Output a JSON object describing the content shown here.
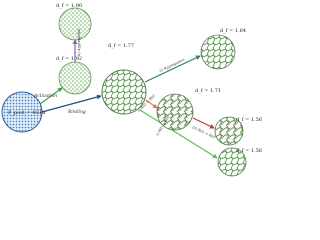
{
  "nodes": [
    {
      "id": "pre",
      "label": "P_post = 4GPa"
    },
    {
      "id": "act",
      "label": "d_f = 1.92"
    },
    {
      "id": "agg1",
      "label": "d_f = 1.90"
    },
    {
      "id": "bind",
      "label": "d_f = 1.77"
    },
    {
      "id": "agg2",
      "label": "d_f = 1.64"
    },
    {
      "id": "mid",
      "label": "d_f = 1.71"
    },
    {
      "id": "r1",
      "label": "d_f = 1.56"
    },
    {
      "id": "r2",
      "label": "d_f = 1.56"
    }
  ],
  "edges": [
    {
      "label": "Activation"
    },
    {
      "label": "ii) Aggregation"
    },
    {
      "label": "Binding"
    },
    {
      "label": "ii) Aggregation"
    },
    {
      "label": "i) R(t) > R(t)"
    },
    {
      "label": "iii) R(t) < R(t)"
    },
    {
      "label": "i) R(t) > R(t)"
    }
  ]
}
